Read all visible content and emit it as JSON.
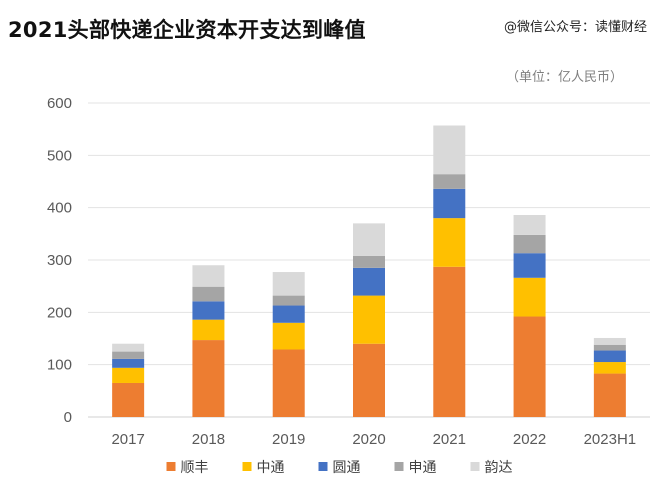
{
  "header": {
    "title": "2021头部快递企业资本开支达到峰值",
    "watermark": "@微信公众号：读懂财经",
    "unit": "（单位：亿人民币）"
  },
  "chart_data": {
    "type": "bar",
    "stacked": true,
    "categories": [
      "2017",
      "2018",
      "2019",
      "2020",
      "2021",
      "2022",
      "2023H1"
    ],
    "ylim": [
      0,
      600
    ],
    "yticks": [
      0,
      100,
      200,
      300,
      400,
      500,
      600
    ],
    "grid": true,
    "legend_position": "bottom",
    "series": [
      {
        "name": "顺丰",
        "color": "#ED7D31",
        "values": [
          65,
          147,
          129,
          140,
          287,
          192,
          83
        ]
      },
      {
        "name": "中通",
        "color": "#FFC000",
        "values": [
          29,
          39,
          51,
          92,
          93,
          74,
          22
        ]
      },
      {
        "name": "圆通",
        "color": "#4472C4",
        "values": [
          17,
          35,
          33,
          53,
          56,
          47,
          22
        ]
      },
      {
        "name": "申通",
        "color": "#A5A5A5",
        "values": [
          14,
          28,
          19,
          23,
          28,
          35,
          11
        ]
      },
      {
        "name": "韵达",
        "color": "#D9D9D9",
        "values": [
          15,
          41,
          45,
          62,
          93,
          38,
          13
        ]
      }
    ]
  }
}
